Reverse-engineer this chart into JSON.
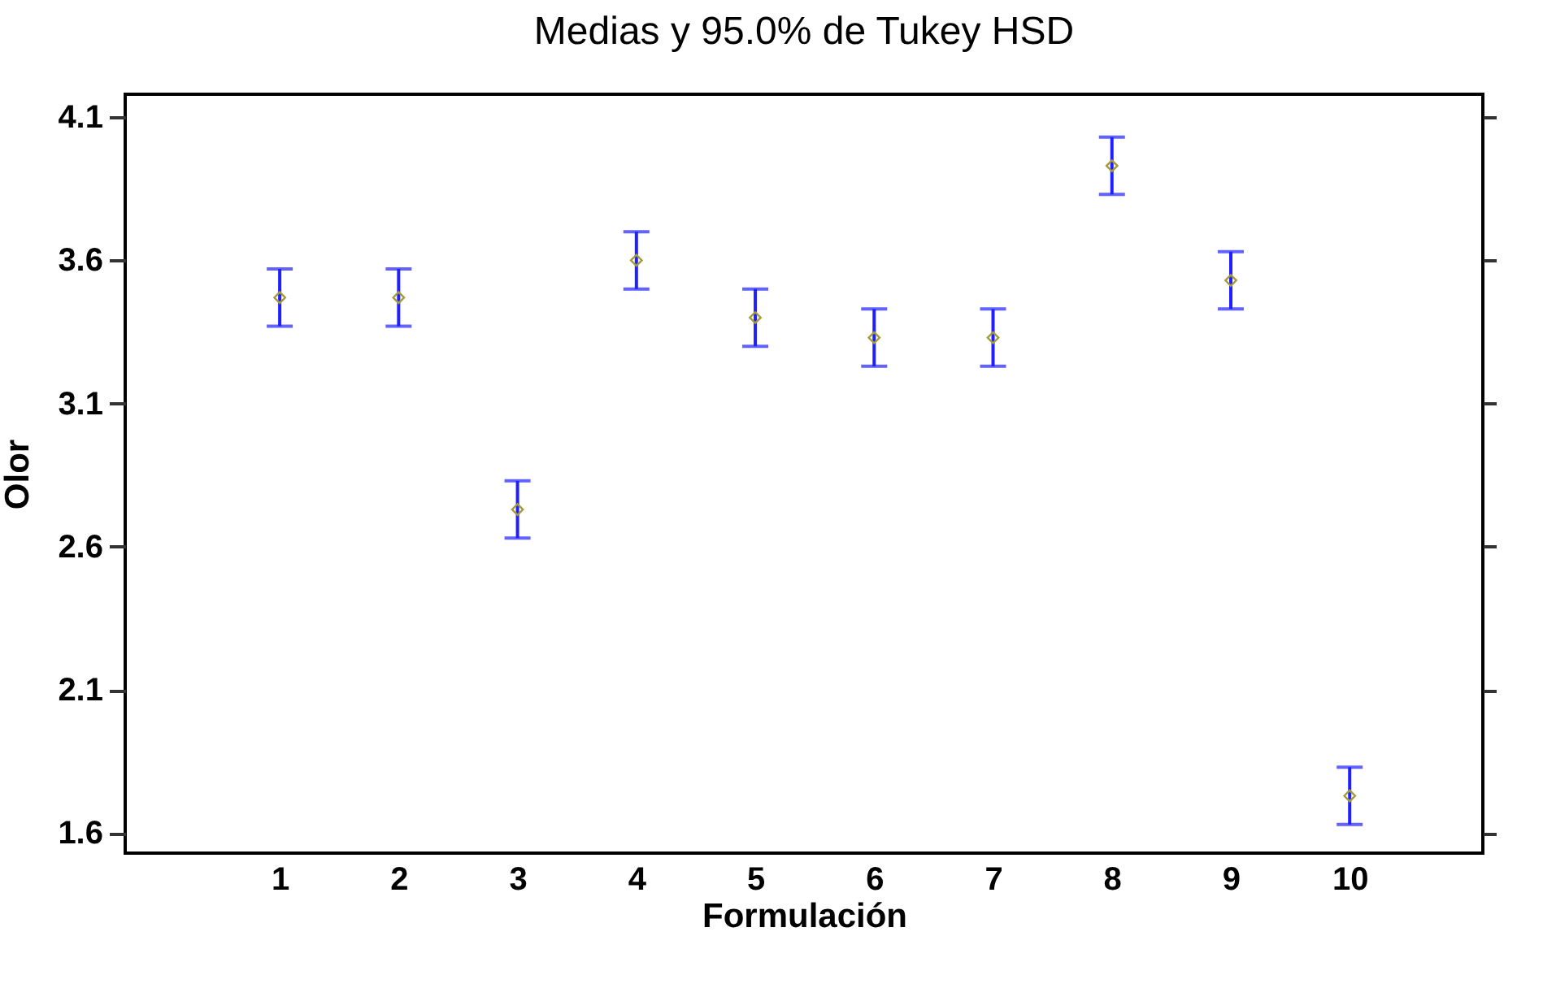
{
  "chart_data": {
    "type": "scatter",
    "title": "Medias y 95.0% de Tukey HSD",
    "xlabel": "Formulación",
    "ylabel": "Olor",
    "categories": [
      "1",
      "2",
      "3",
      "4",
      "5",
      "6",
      "7",
      "8",
      "9",
      "10"
    ],
    "series": [
      {
        "color": "#a39b3a",
        "values": [
          3.47,
          3.47,
          2.73,
          3.6,
          3.4,
          3.33,
          3.33,
          3.93,
          3.53,
          1.73
        ],
        "errors": [
          0.1,
          0.1,
          0.1,
          0.1,
          0.1,
          0.1,
          0.1,
          0.1,
          0.1,
          0.1
        ]
      }
    ],
    "ylim": [
      1.53,
      4.18
    ],
    "yticks": [
      1.6,
      2.1,
      2.6,
      3.1,
      3.6,
      4.1
    ],
    "marker": "diamond",
    "grid": false,
    "legend": false
  }
}
